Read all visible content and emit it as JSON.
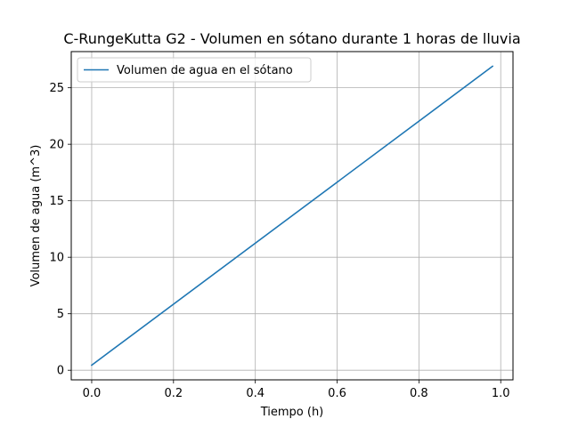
{
  "chart_data": {
    "type": "line",
    "title": "C-RungeKutta G2 - Volumen en sótano durante 1 horas de lluvia",
    "xlabel": "Tiempo (h)",
    "ylabel": "Volumen de agua (m^3)",
    "xlim": [
      -0.05,
      1.03
    ],
    "ylim": [
      -0.85,
      28.2
    ],
    "xticks": [
      0.0,
      0.2,
      0.4,
      0.6,
      0.8,
      1.0
    ],
    "xtick_labels": [
      "0.0",
      "0.2",
      "0.4",
      "0.6",
      "0.8",
      "1.0"
    ],
    "yticks": [
      0,
      5,
      10,
      15,
      20,
      25
    ],
    "ytick_labels": [
      "0",
      "5",
      "10",
      "15",
      "20",
      "25"
    ],
    "grid": true,
    "legend_position": "top-left",
    "series": [
      {
        "name": "Volumen de agua en el sótano",
        "color": "#1f77b4",
        "x": [
          0.0,
          0.98
        ],
        "y": [
          0.45,
          26.9
        ]
      }
    ]
  }
}
